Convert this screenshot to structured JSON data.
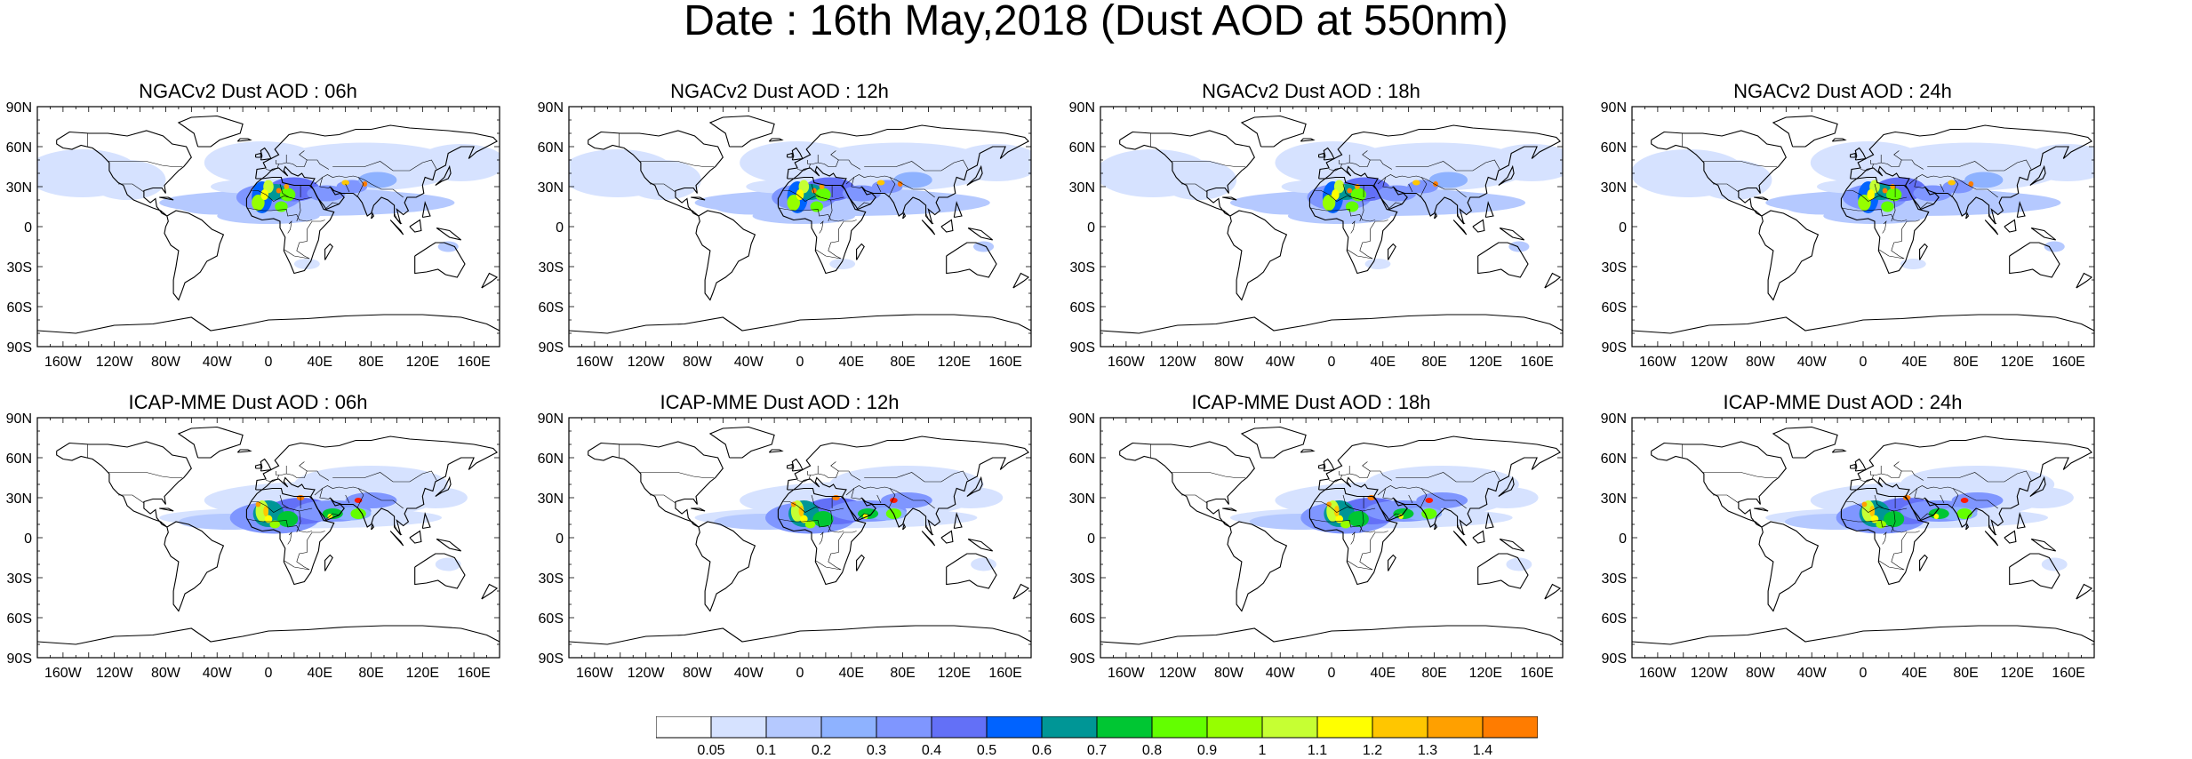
{
  "title": "Date : 16th May,2018 (Dust AOD at 550nm)",
  "panels": [
    {
      "title": "NGACv2 Dust AOD : 06h",
      "model": "NGACv2",
      "hour": 6
    },
    {
      "title": "NGACv2 Dust AOD : 12h",
      "model": "NGACv2",
      "hour": 12
    },
    {
      "title": "NGACv2 Dust AOD : 18h",
      "model": "NGACv2",
      "hour": 18
    },
    {
      "title": "NGACv2 Dust AOD : 24h",
      "model": "NGACv2",
      "hour": 24
    },
    {
      "title": "ICAP-MME Dust AOD : 06h",
      "model": "ICAP-MME",
      "hour": 6
    },
    {
      "title": "ICAP-MME Dust AOD : 12h",
      "model": "ICAP-MME",
      "hour": 12
    },
    {
      "title": "ICAP-MME Dust AOD : 18h",
      "model": "ICAP-MME",
      "hour": 18
    },
    {
      "title": "ICAP-MME Dust AOD : 24h",
      "model": "ICAP-MME",
      "hour": 24
    }
  ],
  "lat_labels": [
    "90N",
    "60N",
    "30N",
    "0",
    "30S",
    "60S",
    "90S"
  ],
  "lon_labels": [
    "160W",
    "120W",
    "80W",
    "40W",
    "0",
    "40E",
    "80E",
    "120E",
    "160E"
  ],
  "lon_label_values": [
    -160,
    -120,
    -80,
    -40,
    0,
    40,
    80,
    120,
    160
  ],
  "lat_label_values": [
    90,
    60,
    30,
    0,
    -30,
    -60,
    -90
  ],
  "colorbar": {
    "labels": [
      "0.05",
      "0.1",
      "0.2",
      "0.3",
      "0.4",
      "0.5",
      "0.6",
      "0.7",
      "0.8",
      "0.9",
      "1",
      "1.1",
      "1.2",
      "1.3",
      "1.4"
    ],
    "colors": [
      "#ffffff",
      "#d6e2ff",
      "#b5c9ff",
      "#8eb2ff",
      "#7f96ff",
      "#6370f7",
      "#0063ff",
      "#009696",
      "#00c633",
      "#63ff00",
      "#96ff00",
      "#c6ff33",
      "#ffff00",
      "#ffc600",
      "#ffa000",
      "#ff7c00",
      "#ff1900"
    ]
  }
}
